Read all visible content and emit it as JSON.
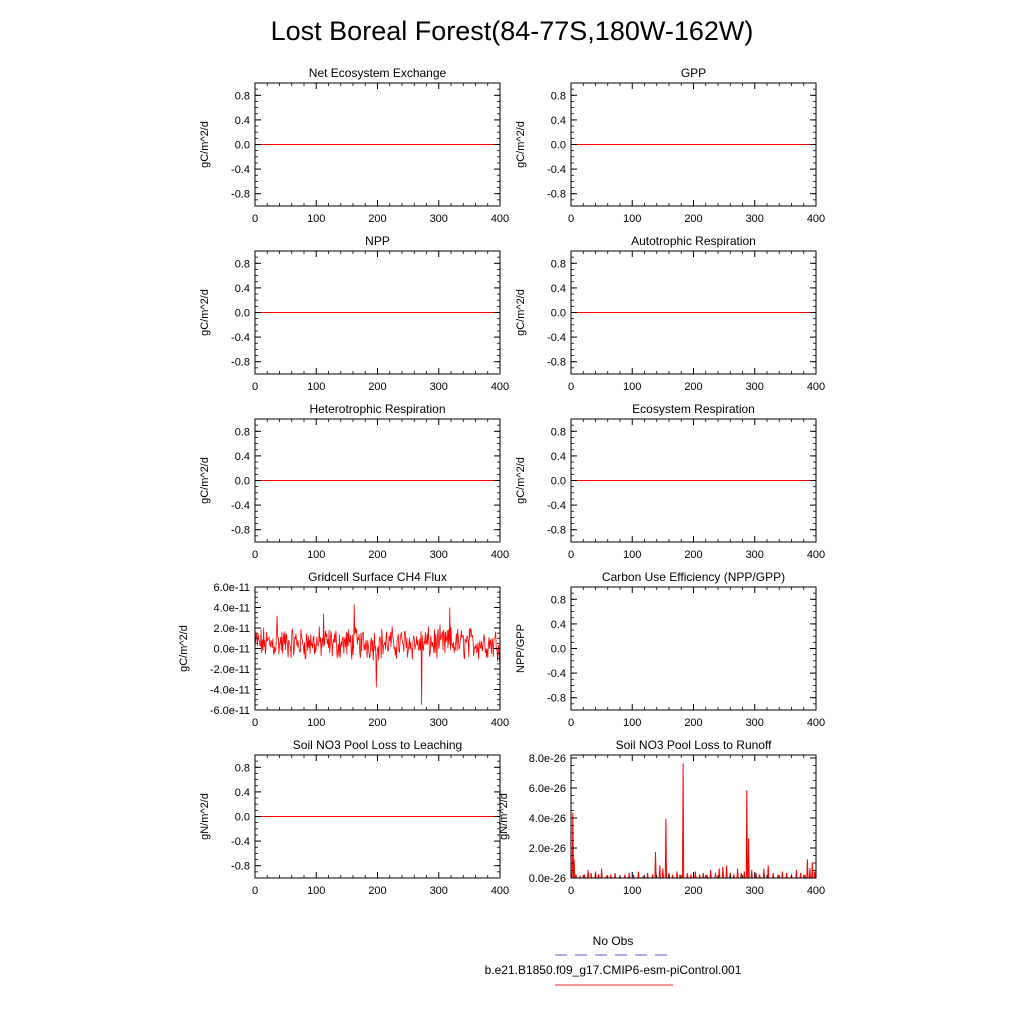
{
  "figure": {
    "title": "Lost Boreal Forest(84-77S,180W-162W)"
  },
  "legend": {
    "entries": [
      {
        "label": "No Obs",
        "color": "#5a5ad8",
        "style": "dashed"
      },
      {
        "label": "b.e21.B1850.f09_g17.CMIP6-esm-piControl.001",
        "color": "#e03030",
        "style": "solid"
      }
    ]
  },
  "series_color": "#ff0000",
  "chart_data": [
    {
      "id": "nee",
      "type": "line",
      "title": "Net Ecosystem Exchange",
      "ylabel": "gC/m^2/d",
      "xlim": [
        0,
        400
      ],
      "ylim": [
        -1,
        1
      ],
      "xticks": [
        0,
        100,
        200,
        300,
        400
      ],
      "xtick_labels": [
        "0",
        "100",
        "200",
        "300",
        "400"
      ],
      "yticks": [
        0.8,
        0.4,
        0.0,
        -0.4,
        -0.8
      ],
      "ytick_labels": [
        "0.8",
        "0.4",
        "0.0",
        "-0.4",
        "-0.8"
      ],
      "series": [
        {
          "kind": "constant",
          "value": 0,
          "x": [
            0,
            400
          ]
        }
      ]
    },
    {
      "id": "gpp",
      "type": "line",
      "title": "GPP",
      "ylabel": "gC/m^2/d",
      "xlim": [
        0,
        400
      ],
      "ylim": [
        -1,
        1
      ],
      "xticks": [
        0,
        100,
        200,
        300,
        400
      ],
      "xtick_labels": [
        "0",
        "100",
        "200",
        "300",
        "400"
      ],
      "yticks": [
        0.8,
        0.4,
        0.0,
        -0.4,
        -0.8
      ],
      "ytick_labels": [
        "0.8",
        "0.4",
        "0.0",
        "-0.4",
        "-0.8"
      ],
      "series": [
        {
          "kind": "constant",
          "value": 0,
          "x": [
            0,
            400
          ]
        }
      ]
    },
    {
      "id": "npp",
      "type": "line",
      "title": "NPP",
      "ylabel": "gC/m^2/d",
      "xlim": [
        0,
        400
      ],
      "ylim": [
        -1,
        1
      ],
      "xticks": [
        0,
        100,
        200,
        300,
        400
      ],
      "xtick_labels": [
        "0",
        "100",
        "200",
        "300",
        "400"
      ],
      "yticks": [
        0.8,
        0.4,
        0.0,
        -0.4,
        -0.8
      ],
      "ytick_labels": [
        "0.8",
        "0.4",
        "0.0",
        "-0.4",
        "-0.8"
      ],
      "series": [
        {
          "kind": "constant",
          "value": 0,
          "x": [
            0,
            400
          ]
        }
      ]
    },
    {
      "id": "ar",
      "type": "line",
      "title": "Autotrophic Respiration",
      "ylabel": "gC/m^2/d",
      "xlim": [
        0,
        400
      ],
      "ylim": [
        -1,
        1
      ],
      "xticks": [
        0,
        100,
        200,
        300,
        400
      ],
      "xtick_labels": [
        "0",
        "100",
        "200",
        "300",
        "400"
      ],
      "yticks": [
        0.8,
        0.4,
        0.0,
        -0.4,
        -0.8
      ],
      "ytick_labels": [
        "0.8",
        "0.4",
        "0.0",
        "-0.4",
        "-0.8"
      ],
      "series": [
        {
          "kind": "constant",
          "value": 0,
          "x": [
            0,
            400
          ]
        }
      ]
    },
    {
      "id": "hr",
      "type": "line",
      "title": "Heterotrophic Respiration",
      "ylabel": "gC/m^2/d",
      "xlim": [
        0,
        400
      ],
      "ylim": [
        -1,
        1
      ],
      "xticks": [
        0,
        100,
        200,
        300,
        400
      ],
      "xtick_labels": [
        "0",
        "100",
        "200",
        "300",
        "400"
      ],
      "yticks": [
        0.8,
        0.4,
        0.0,
        -0.4,
        -0.8
      ],
      "ytick_labels": [
        "0.8",
        "0.4",
        "0.0",
        "-0.4",
        "-0.8"
      ],
      "series": [
        {
          "kind": "constant",
          "value": 0,
          "x": [
            0,
            400
          ]
        }
      ]
    },
    {
      "id": "er",
      "type": "line",
      "title": "Ecosystem Respiration",
      "ylabel": "gC/m^2/d",
      "xlim": [
        0,
        400
      ],
      "ylim": [
        -1,
        1
      ],
      "xticks": [
        0,
        100,
        200,
        300,
        400
      ],
      "xtick_labels": [
        "0",
        "100",
        "200",
        "300",
        "400"
      ],
      "yticks": [
        0.8,
        0.4,
        0.0,
        -0.4,
        -0.8
      ],
      "ytick_labels": [
        "0.8",
        "0.4",
        "0.0",
        "-0.4",
        "-0.8"
      ],
      "series": [
        {
          "kind": "constant",
          "value": 0,
          "x": [
            0,
            400
          ]
        }
      ]
    },
    {
      "id": "ch4",
      "type": "line",
      "title": "Gridcell Surface CH4 Flux",
      "ylabel": "gC/m^2/d",
      "xlim": [
        0,
        400
      ],
      "ylim": [
        -6e-11,
        6e-11
      ],
      "xticks": [
        0,
        100,
        200,
        300,
        400
      ],
      "xtick_labels": [
        "0",
        "100",
        "200",
        "300",
        "400"
      ],
      "yticks": [
        6e-11,
        4e-11,
        2e-11,
        0,
        -2e-11,
        -4e-11,
        -6e-11
      ],
      "ytick_labels": [
        "6.0e-11",
        "4.0e-11",
        "2.0e-11",
        "0.0e-11",
        "-2.0e-11",
        "-4.0e-11",
        "-6.0e-11"
      ],
      "series": [
        {
          "kind": "noisy",
          "x_range": [
            1,
            400
          ],
          "y_range": [
            -5.5e-11,
            4.3e-11
          ],
          "typical_center": 5e-12,
          "typical_amplitude": 1.2e-11,
          "notable_points": [
            {
              "x": 162,
              "y": 4.3e-11
            },
            {
              "x": 318,
              "y": 4e-11
            },
            {
              "x": 272,
              "y": -5.5e-11
            },
            {
              "x": 198,
              "y": -3.8e-11
            },
            {
              "x": 36,
              "y": 3.2e-11
            },
            {
              "x": 112,
              "y": 3.4e-11
            }
          ]
        }
      ]
    },
    {
      "id": "cue",
      "type": "line",
      "title": "Carbon Use Efficiency (NPP/GPP)",
      "ylabel": "NPP/GPP",
      "xlim": [
        0,
        400
      ],
      "ylim": [
        -1,
        1
      ],
      "xticks": [
        0,
        100,
        200,
        300,
        400
      ],
      "xtick_labels": [
        "0",
        "100",
        "200",
        "300",
        "400"
      ],
      "yticks": [
        0.8,
        0.4,
        0.0,
        -0.4,
        -0.8
      ],
      "ytick_labels": [
        "0.8",
        "0.4",
        "0.0",
        "-0.4",
        "-0.8"
      ],
      "series": []
    },
    {
      "id": "leach",
      "type": "line",
      "title": "Soil NO3 Pool Loss to Leaching",
      "ylabel": "gN/m^2/d",
      "xlim": [
        0,
        400
      ],
      "ylim": [
        -1,
        1
      ],
      "xticks": [
        0,
        100,
        200,
        300,
        400
      ],
      "xtick_labels": [
        "0",
        "100",
        "200",
        "300",
        "400"
      ],
      "yticks": [
        0.8,
        0.4,
        0.0,
        -0.4,
        -0.8
      ],
      "ytick_labels": [
        "0.8",
        "0.4",
        "0.0",
        "-0.4",
        "-0.8"
      ],
      "series": [
        {
          "kind": "constant",
          "value": 0,
          "x": [
            0,
            400
          ]
        }
      ]
    },
    {
      "id": "runoff",
      "type": "line",
      "title": "Soil NO3 Pool Loss to Runoff",
      "ylabel": "gN/m^2/d",
      "xlim": [
        0,
        400
      ],
      "ylim": [
        0,
        8.2e-26
      ],
      "xticks": [
        0,
        100,
        200,
        300,
        400
      ],
      "xtick_labels": [
        "0",
        "100",
        "200",
        "300",
        "400"
      ],
      "yticks": [
        8e-26,
        6e-26,
        4e-26,
        2e-26,
        0
      ],
      "ytick_labels": [
        "8.0e-26",
        "6.0e-26",
        "4.0e-26",
        "2.0e-26",
        "0.0e-26"
      ],
      "series": [
        {
          "kind": "spikes",
          "baseline": 0,
          "x": [
            1,
            3,
            5,
            8,
            15,
            22,
            28,
            33,
            40,
            45,
            50,
            58,
            65,
            72,
            80,
            88,
            95,
            102,
            110,
            118,
            125,
            133,
            138,
            145,
            150,
            155,
            160,
            166,
            173,
            178,
            183,
            190,
            196,
            203,
            210,
            216,
            222,
            228,
            236,
            242,
            248,
            254,
            260,
            266,
            272,
            278,
            283,
            287,
            290,
            295,
            302,
            308,
            315,
            322,
            330,
            338,
            345,
            352,
            360,
            368,
            375,
            382,
            386,
            390,
            394,
            398
          ],
          "y": [
            3e-27,
            4.3e-26,
            1.2e-26,
            2e-27,
            1e-27,
            2e-27,
            5e-27,
            3e-27,
            4e-27,
            2e-27,
            6e-27,
            1e-27,
            2e-27,
            3e-27,
            1e-27,
            2e-27,
            3e-27,
            2e-27,
            4e-27,
            1e-27,
            3e-27,
            2e-27,
            1.7e-26,
            8e-27,
            6e-27,
            3.9e-26,
            3e-27,
            2e-27,
            4e-27,
            2e-27,
            7.6e-26,
            3e-27,
            2e-27,
            4e-27,
            2e-27,
            3e-27,
            2e-27,
            5e-27,
            3e-27,
            6e-27,
            7e-27,
            8e-27,
            3e-27,
            2e-27,
            6e-27,
            3e-27,
            4e-27,
            5.8e-26,
            2.6e-26,
            5e-27,
            3e-27,
            2e-27,
            6e-27,
            8e-27,
            3e-27,
            2e-27,
            4e-27,
            3e-27,
            2e-27,
            5e-27,
            3e-27,
            2e-27,
            1.2e-26,
            6e-27,
            1e-26,
            4e-27
          ]
        }
      ]
    }
  ]
}
